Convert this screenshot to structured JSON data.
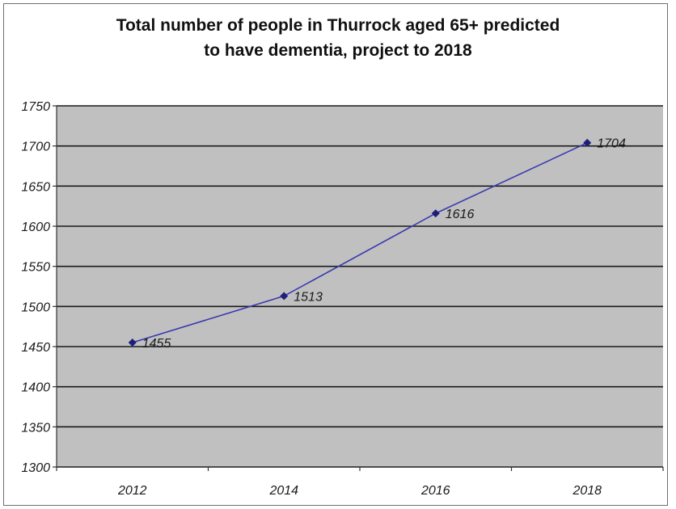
{
  "chart_data": {
    "type": "line",
    "title_lines": [
      "Total number of people in Thurrock aged 65+ predicted",
      "to have dementia, project to 2018"
    ],
    "xlabel": "",
    "ylabel": "",
    "categories": [
      "2012",
      "2014",
      "2016",
      "2018"
    ],
    "series": [
      {
        "values": [
          1455,
          1513,
          1616,
          1704
        ],
        "data_labels": [
          "1455",
          "1513",
          "1616",
          "1704"
        ]
      }
    ],
    "ylim": [
      1300,
      1750
    ],
    "yticks": [
      1750,
      1700,
      1650,
      1600,
      1550,
      1500,
      1450,
      1400,
      1350,
      1300
    ],
    "grid": true,
    "plot_background": "#c0c0c0",
    "line_color": "#3a3ab0",
    "marker_color": "#1f1f7a",
    "gridline_color": "#1a1a1a"
  }
}
